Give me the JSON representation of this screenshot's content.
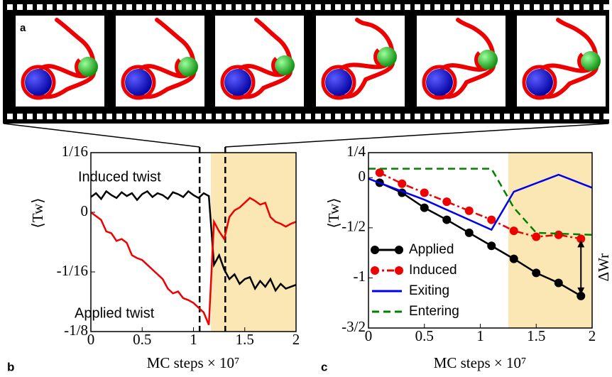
{
  "filmstrip": {
    "label": "a"
  },
  "chart_data": [
    {
      "type": "line",
      "panel_label": "b",
      "xlabel": "MC steps × 10⁷",
      "ylabel": "⟨Tw⟩",
      "annotations": [
        "Induced twist",
        "Applied twist"
      ],
      "xlim": [
        0,
        2
      ],
      "xticks": [
        0,
        0.5,
        1,
        1.5,
        2
      ],
      "ylim": [
        -0.125,
        0.0625
      ],
      "yticks": [
        {
          "value": 0.0625,
          "label": "1/16"
        },
        0,
        {
          "value": -0.0625,
          "label": "-1/16"
        },
        {
          "value": -0.125,
          "label": "-1/8"
        }
      ],
      "highlight": [
        1.17,
        2
      ],
      "highlight_color": "#fbe7b3",
      "markers": [
        1.06,
        1.31
      ],
      "x": [
        0,
        0.05,
        0.1,
        0.15,
        0.2,
        0.25,
        0.3,
        0.35,
        0.4,
        0.45,
        0.5,
        0.55,
        0.6,
        0.65,
        0.7,
        0.75,
        0.8,
        0.85,
        0.9,
        0.95,
        1,
        1.05,
        1.1,
        1.15,
        1.2,
        1.25,
        1.3,
        1.35,
        1.4,
        1.45,
        1.5,
        1.55,
        1.6,
        1.65,
        1.7,
        1.75,
        1.8,
        1.85,
        1.9,
        1.95,
        2
      ],
      "series": [
        {
          "color": "#000000",
          "values": [
            0.016,
            0.02,
            0.014,
            0.022,
            0.018,
            0.015,
            0.021,
            0.017,
            0.02,
            0.013,
            0.019,
            0.022,
            0.016,
            0.02,
            0.018,
            0.014,
            0.021,
            0.019,
            0.016,
            0.022,
            0.018,
            0.015,
            0.02,
            0.017,
            -0.055,
            -0.045,
            -0.06,
            -0.07,
            -0.065,
            -0.075,
            -0.07,
            -0.068,
            -0.08,
            -0.072,
            -0.078,
            -0.07,
            -0.082,
            -0.075,
            -0.08,
            -0.078,
            -0.076
          ]
        },
        {
          "color": "#ee0000",
          "values": [
            0,
            -0.004,
            -0.008,
            -0.02,
            -0.022,
            -0.03,
            -0.028,
            -0.032,
            -0.045,
            -0.048,
            -0.05,
            -0.055,
            -0.06,
            -0.065,
            -0.07,
            -0.08,
            -0.085,
            -0.083,
            -0.09,
            -0.092,
            -0.095,
            -0.1,
            -0.105,
            -0.118,
            -0.01,
            -0.02,
            -0.028,
            -0.005,
            0.002,
            0.005,
            0.01,
            0.015,
            0.012,
            0.008,
            0.01,
            -0.005,
            -0.01,
            -0.012,
            -0.015,
            -0.012,
            -0.01
          ]
        }
      ]
    },
    {
      "type": "line",
      "panel_label": "c",
      "xlabel": "MC steps × 10⁷",
      "ylabel": "⟨Tw⟩",
      "arrow_label": "ΔWr",
      "xlim": [
        0,
        2
      ],
      "xticks": [
        0,
        0.5,
        1,
        1.5,
        2
      ],
      "ylim": [
        -1.5,
        0.25
      ],
      "yticks": [
        {
          "value": 0.25,
          "label": "1/4"
        },
        0,
        {
          "value": -0.5,
          "label": "-1/2"
        },
        -1,
        {
          "value": -1.5,
          "label": "-3/2"
        }
      ],
      "highlight": [
        1.25,
        2
      ],
      "highlight_color": "#fbe7b3",
      "legend": "lower left",
      "series": [
        {
          "name": "Applied",
          "color": "#000000",
          "style": "solid",
          "marker": true,
          "x": [
            0.1,
            0.3,
            0.5,
            0.7,
            0.9,
            1.1,
            1.3,
            1.5,
            1.7,
            1.9
          ],
          "values": [
            -0.05,
            -0.15,
            -0.3,
            -0.42,
            -0.55,
            -0.68,
            -0.81,
            -0.95,
            -1.05,
            -1.18
          ]
        },
        {
          "name": "Induced",
          "color": "#ee0000",
          "style": "dashdot",
          "marker": true,
          "x": [
            0.1,
            0.3,
            0.5,
            0.7,
            0.9,
            1.1,
            1.3,
            1.5,
            1.7,
            1.9
          ],
          "values": [
            0.05,
            -0.06,
            -0.15,
            -0.24,
            -0.33,
            -0.42,
            -0.53,
            -0.59,
            -0.57,
            -0.61
          ]
        },
        {
          "name": "Exiting",
          "color": "#0000ee",
          "style": "solid",
          "marker": false,
          "x": [
            0,
            0.5,
            1.1,
            1.3,
            1.7,
            2
          ],
          "values": [
            -0.01,
            -0.22,
            -0.52,
            -0.14,
            0.03,
            -0.1
          ]
        },
        {
          "name": "Entering",
          "color": "#008000",
          "style": "dashed",
          "marker": false,
          "x": [
            0,
            1.1,
            1.3,
            1.5,
            2
          ],
          "values": [
            0.09,
            0.09,
            -0.3,
            -0.55,
            -0.57
          ]
        }
      ]
    }
  ]
}
